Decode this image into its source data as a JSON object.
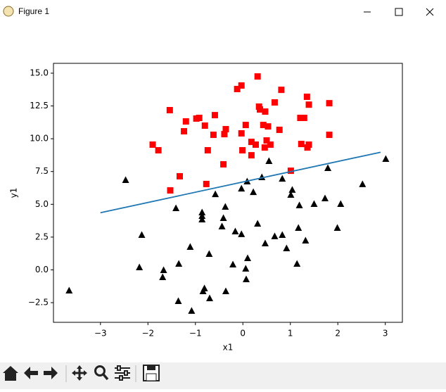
{
  "window": {
    "title": "Figure 1"
  },
  "chart_data": {
    "type": "scatter",
    "xlabel": "x1",
    "ylabel": "y1",
    "xlim": [
      -3.99,
      3.36
    ],
    "ylim": [
      -4.0,
      15.75
    ],
    "xticks": [
      {
        "value": -3,
        "label": "−3"
      },
      {
        "value": -2,
        "label": "−2"
      },
      {
        "value": -1,
        "label": "−1"
      },
      0,
      1,
      2,
      3
    ],
    "yticks": [
      {
        "value": -2.5,
        "label": "−2.5"
      },
      {
        "value": 0,
        "label": "0.0"
      },
      {
        "value": 2.5,
        "label": "2.5"
      },
      {
        "value": 5,
        "label": "5.0"
      },
      {
        "value": 7.5,
        "label": "7.5"
      },
      {
        "value": 10,
        "label": "10.0"
      },
      {
        "value": 12.5,
        "label": "12.5"
      },
      {
        "value": 15,
        "label": "15.0"
      }
    ],
    "series": [
      {
        "type": "scatter",
        "marker": "square",
        "color": "#ff0000",
        "x": [
          -1.54,
          -1.9,
          -1.78,
          -1.2,
          -1.24,
          -0.98,
          -0.92,
          -0.8,
          -0.74,
          -0.62,
          -0.59,
          -0.36,
          -0.39,
          -0.41,
          -1.33,
          -1.53,
          -0.77,
          -0.12,
          -0.03,
          0.31,
          0.06,
          -0.03,
          -0.01,
          0.18,
          0.18,
          0.27,
          0.34,
          0.36,
          0.47,
          0.43,
          0.53,
          0.5,
          0.46,
          0.58,
          0.67,
          0.81,
          0.77,
          1.35,
          1.39,
          1.21,
          1.29,
          1.23,
          1.39,
          1.36,
          1.01,
          1.82,
          1.82
        ],
        "values": [
          12.18,
          9.55,
          9.12,
          11.32,
          10.57,
          11.54,
          11.59,
          11.0,
          9.12,
          10.3,
          11.8,
          10.73,
          10.35,
          8.05,
          7.14,
          6.06,
          6.55,
          13.79,
          14.06,
          14.75,
          11.05,
          10.41,
          9.12,
          9.76,
          8.74,
          9.55,
          12.45,
          12.23,
          12.07,
          11.05,
          10.94,
          9.87,
          9.33,
          9.55,
          12.77,
          13.73,
          10.68,
          13.2,
          12.6,
          11.59,
          11.59,
          9.6,
          9.55,
          9.33,
          7.56,
          12.71,
          10.3
        ]
      },
      {
        "type": "scatter",
        "marker": "triangle",
        "color": "#000000",
        "x": [
          -3.66,
          -2.47,
          -2.13,
          -2.18,
          -1.67,
          -1.69,
          -1.41,
          -1.35,
          -1.36,
          -1.11,
          -1.08,
          -0.86,
          -0.86,
          -0.86,
          -0.81,
          -0.84,
          -0.7,
          -0.71,
          -0.58,
          -0.44,
          -0.41,
          -0.37,
          -0.36,
          -0.16,
          -0.21,
          -0.03,
          -0.03,
          0.09,
          0.06,
          0.07,
          0.1,
          0.22,
          0.31,
          0.4,
          0.47,
          0.55,
          0.67,
          0.83,
          0.83,
          0.92,
          1.01,
          1.04,
          1.19,
          1.17,
          1.14,
          1.32,
          1.5,
          1.73,
          1.79,
          1.99,
          2.06,
          2.52,
          3.01
        ],
        "values": [
          -1.56,
          6.87,
          2.68,
          0.21,
          0.0,
          -0.54,
          4.72,
          0.48,
          -2.36,
          1.77,
          -3.11,
          4.4,
          4.13,
          3.86,
          -1.39,
          -1.61,
          -2.15,
          1.23,
          5.79,
          3.33,
          3.97,
          4.83,
          -1.61,
          2.95,
          0.43,
          6.22,
          2.74,
          6.76,
          0.11,
          -0.7,
          0.91,
          5.95,
          3.54,
          7.08,
          2.04,
          8.32,
          2.58,
          2.68,
          6.97,
          1.66,
          5.74,
          6.12,
          4.94,
          3.22,
          0.48,
          2.25,
          5.04,
          5.47,
          7.78,
          3.22,
          5.04,
          6.55,
          8.48
        ]
      },
      {
        "type": "line",
        "color": "#1f77b4",
        "x": [
          -3,
          2.9
        ],
        "values": [
          4.36,
          8.97
        ]
      }
    ]
  }
}
